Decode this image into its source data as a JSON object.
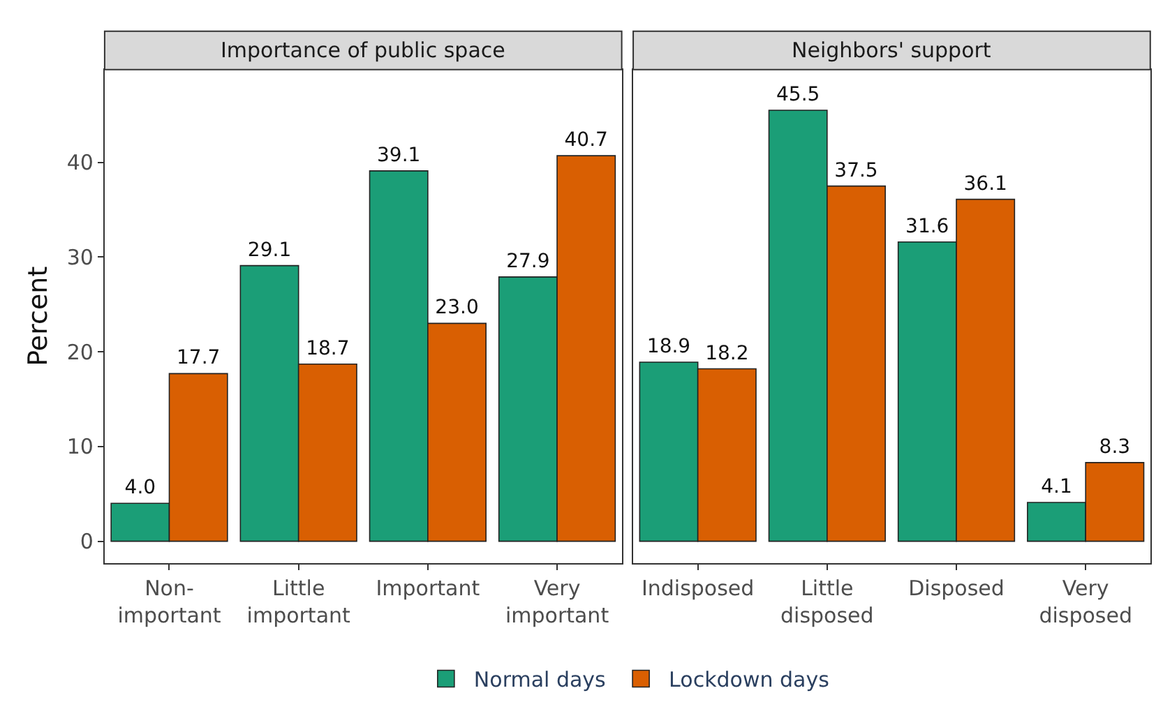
{
  "chart_data": [
    {
      "type": "bar",
      "title": "Importance of public space",
      "ylabel": "Percent",
      "categories": [
        "Non-important",
        "Little important",
        "Important",
        "Very important"
      ],
      "series": [
        {
          "name": "Normal days",
          "color": "#1b9e77",
          "values": [
            4.0,
            29.1,
            39.1,
            27.9
          ],
          "value_labels": [
            "4.0",
            "29.1",
            "39.1",
            "27.9"
          ]
        },
        {
          "name": "Lockdown days",
          "color": "#d95f02",
          "values": [
            17.7,
            18.7,
            23.0,
            40.7
          ],
          "value_labels": [
            "17.7",
            "18.7",
            "23.0",
            "40.7"
          ]
        }
      ],
      "ylim": [
        -2.3,
        49.8
      ],
      "yticks": [
        0,
        10,
        20,
        30,
        40
      ],
      "legend": "bottom"
    },
    {
      "type": "bar",
      "title": "Neighbors' support",
      "categories": [
        "Indisposed",
        "Little disposed",
        "Disposed",
        "Very disposed"
      ],
      "series": [
        {
          "name": "Normal days",
          "color": "#1b9e77",
          "values": [
            18.9,
            45.5,
            31.6,
            4.1
          ],
          "value_labels": [
            "18.9",
            "45.5",
            "31.6",
            "4.1"
          ]
        },
        {
          "name": "Lockdown days",
          "color": "#d95f02",
          "values": [
            18.2,
            37.5,
            36.1,
            8.3
          ],
          "value_labels": [
            "18.2",
            "37.5",
            "36.1",
            "8.3"
          ]
        }
      ],
      "ylim": [
        -2.3,
        49.8
      ],
      "yticks": [
        0,
        10,
        20,
        30,
        40
      ],
      "legend": "bottom",
      "tick_labels": "x"
    }
  ]
}
